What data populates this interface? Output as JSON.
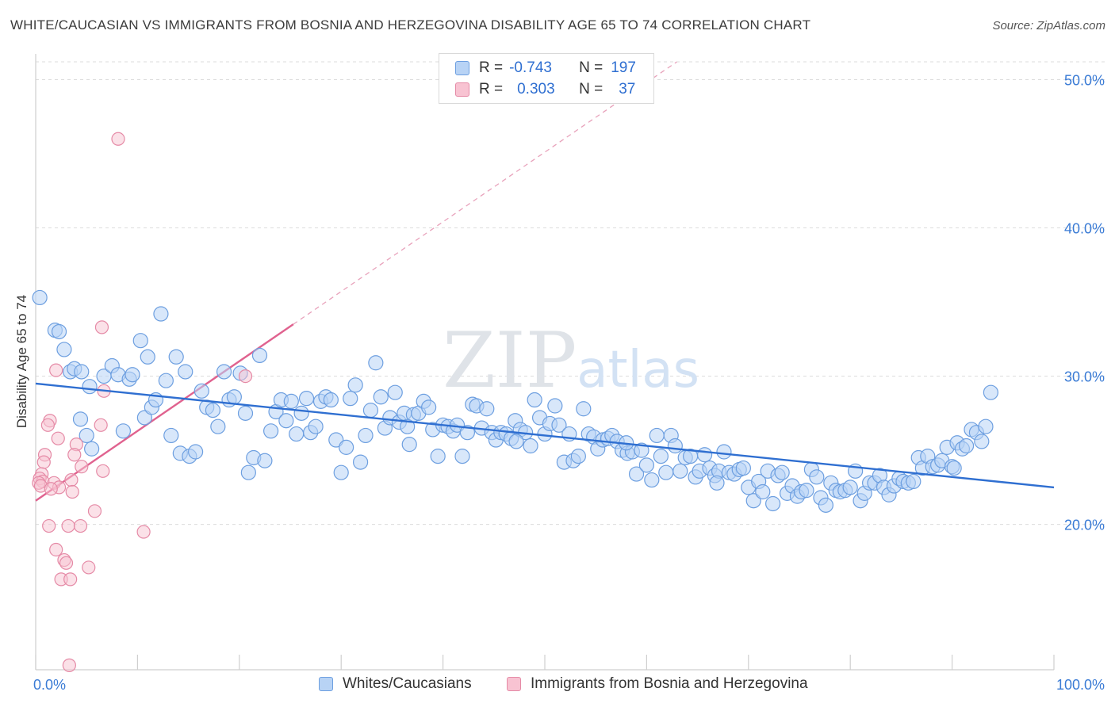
{
  "title": "WHITE/CAUCASIAN VS IMMIGRANTS FROM BOSNIA AND HERZEGOVINA DISABILITY AGE 65 TO 74 CORRELATION CHART",
  "source": "Source: ZipAtlas.com",
  "watermark": "ZIPatlas",
  "legend": {
    "rows": [
      {
        "r_label": "R =",
        "r_value": "-0.743",
        "n_label": "N =",
        "n_value": "197"
      },
      {
        "r_label": "R =",
        "r_value": "0.303",
        "n_label": "N =",
        "n_value": "37"
      }
    ],
    "series": [
      "Whites/Caucasians",
      "Immigrants from Bosnia and Herzegovina"
    ]
  },
  "colors": {
    "blue_fill": "#b8d3f5",
    "blue_stroke": "#6d9fe0",
    "blue_line": "#2f6fd1",
    "pink_fill": "#f8c3d2",
    "pink_stroke": "#e58aa6",
    "pink_line": "#e0628f",
    "tick_text": "#3a7bd5"
  },
  "chart_data": {
    "type": "scatter",
    "xlabel": "",
    "ylabel": "Disability Age 65 to 74",
    "xlim": [
      0,
      100
    ],
    "ylim": [
      10.2,
      51.2
    ],
    "x_tick_labels": [
      "0.0%",
      "100.0%"
    ],
    "y_ticks": [
      20,
      30,
      40,
      50
    ],
    "y_tick_labels": [
      "20.0%",
      "30.0%",
      "40.0%",
      "50.0%"
    ],
    "grid": true,
    "legend_position": "top-center",
    "series": [
      {
        "name": "Whites/Caucasians",
        "r": -0.743,
        "n": 197,
        "trend": {
          "x": [
            0,
            100
          ],
          "y": [
            29.5,
            22.5
          ]
        },
        "points": [
          [
            0.4,
            35.3
          ],
          [
            1.9,
            33.1
          ],
          [
            2.3,
            33.0
          ],
          [
            2.8,
            31.8
          ],
          [
            3.4,
            30.3
          ],
          [
            3.8,
            30.5
          ],
          [
            4.5,
            30.3
          ],
          [
            5.3,
            29.3
          ],
          [
            4.4,
            27.1
          ],
          [
            5.5,
            25.1
          ],
          [
            5.0,
            26.0
          ],
          [
            6.7,
            30.0
          ],
          [
            7.5,
            30.7
          ],
          [
            8.1,
            30.1
          ],
          [
            8.6,
            26.3
          ],
          [
            9.2,
            29.8
          ],
          [
            9.5,
            30.1
          ],
          [
            10.3,
            32.4
          ],
          [
            10.7,
            27.2
          ],
          [
            11.0,
            31.3
          ],
          [
            11.4,
            27.9
          ],
          [
            11.8,
            28.4
          ],
          [
            12.3,
            34.2
          ],
          [
            12.8,
            29.7
          ],
          [
            13.3,
            26.0
          ],
          [
            13.8,
            31.3
          ],
          [
            14.2,
            24.8
          ],
          [
            14.7,
            30.3
          ],
          [
            15.1,
            24.6
          ],
          [
            15.7,
            24.9
          ],
          [
            16.3,
            29.0
          ],
          [
            16.8,
            27.9
          ],
          [
            17.4,
            27.7
          ],
          [
            17.9,
            26.6
          ],
          [
            18.5,
            30.3
          ],
          [
            19.0,
            28.4
          ],
          [
            19.5,
            28.6
          ],
          [
            20.1,
            30.2
          ],
          [
            20.6,
            27.5
          ],
          [
            20.9,
            23.5
          ],
          [
            21.4,
            24.5
          ],
          [
            22.0,
            31.4
          ],
          [
            22.5,
            24.3
          ],
          [
            23.1,
            26.3
          ],
          [
            23.6,
            27.6
          ],
          [
            24.1,
            28.4
          ],
          [
            24.6,
            27.0
          ],
          [
            25.1,
            28.3
          ],
          [
            25.6,
            26.1
          ],
          [
            26.1,
            27.5
          ],
          [
            26.6,
            28.5
          ],
          [
            27.0,
            26.2
          ],
          [
            27.5,
            26.6
          ],
          [
            28.0,
            28.3
          ],
          [
            28.5,
            28.6
          ],
          [
            29.0,
            28.4
          ],
          [
            29.5,
            25.7
          ],
          [
            30.0,
            23.5
          ],
          [
            30.5,
            25.2
          ],
          [
            30.9,
            28.5
          ],
          [
            31.4,
            29.4
          ],
          [
            31.9,
            24.2
          ],
          [
            32.4,
            26.0
          ],
          [
            32.9,
            27.7
          ],
          [
            33.4,
            30.9
          ],
          [
            33.9,
            28.6
          ],
          [
            34.3,
            26.5
          ],
          [
            34.8,
            27.2
          ],
          [
            35.3,
            28.9
          ],
          [
            35.7,
            26.9
          ],
          [
            36.2,
            27.5
          ],
          [
            36.7,
            25.4
          ],
          [
            37.1,
            27.4
          ],
          [
            37.6,
            27.5
          ],
          [
            38.1,
            28.3
          ],
          [
            38.6,
            27.9
          ],
          [
            39.0,
            26.4
          ],
          [
            39.5,
            24.6
          ],
          [
            40.0,
            26.7
          ],
          [
            40.5,
            26.6
          ],
          [
            41.0,
            26.3
          ],
          [
            41.4,
            26.7
          ],
          [
            41.9,
            24.6
          ],
          [
            42.4,
            26.2
          ],
          [
            42.9,
            28.1
          ],
          [
            43.3,
            28.0
          ],
          [
            43.8,
            26.5
          ],
          [
            44.3,
            27.8
          ],
          [
            44.8,
            26.2
          ],
          [
            45.2,
            25.7
          ],
          [
            45.7,
            26.2
          ],
          [
            46.2,
            26.1
          ],
          [
            46.7,
            25.8
          ],
          [
            47.1,
            27.0
          ],
          [
            47.6,
            26.4
          ],
          [
            48.1,
            26.2
          ],
          [
            48.6,
            25.3
          ],
          [
            49.0,
            28.4
          ],
          [
            49.5,
            27.2
          ],
          [
            50.0,
            26.1
          ],
          [
            50.5,
            26.8
          ],
          [
            51.0,
            28.0
          ],
          [
            51.4,
            26.7
          ],
          [
            51.9,
            24.2
          ],
          [
            52.4,
            26.1
          ],
          [
            52.8,
            24.3
          ],
          [
            53.3,
            24.6
          ],
          [
            53.8,
            27.8
          ],
          [
            54.3,
            26.1
          ],
          [
            54.8,
            25.9
          ],
          [
            55.2,
            25.1
          ],
          [
            55.7,
            25.7
          ],
          [
            56.2,
            25.8
          ],
          [
            56.6,
            26.0
          ],
          [
            57.1,
            25.6
          ],
          [
            57.6,
            25.0
          ],
          [
            58.1,
            24.8
          ],
          [
            58.6,
            24.9
          ],
          [
            59.0,
            23.4
          ],
          [
            59.5,
            25.0
          ],
          [
            60.0,
            24.0
          ],
          [
            60.5,
            23.0
          ],
          [
            61.0,
            26.0
          ],
          [
            61.4,
            24.6
          ],
          [
            61.9,
            23.5
          ],
          [
            62.4,
            26.0
          ],
          [
            62.8,
            25.3
          ],
          [
            63.3,
            23.6
          ],
          [
            63.8,
            24.5
          ],
          [
            64.3,
            24.6
          ],
          [
            64.8,
            23.2
          ],
          [
            65.2,
            23.6
          ],
          [
            65.7,
            24.7
          ],
          [
            66.2,
            23.8
          ],
          [
            66.7,
            23.3
          ],
          [
            67.1,
            23.6
          ],
          [
            67.6,
            24.9
          ],
          [
            68.1,
            23.5
          ],
          [
            68.6,
            23.4
          ],
          [
            69.1,
            23.7
          ],
          [
            69.5,
            23.8
          ],
          [
            70.0,
            22.5
          ],
          [
            70.5,
            21.6
          ],
          [
            71.0,
            22.9
          ],
          [
            71.4,
            22.2
          ],
          [
            71.9,
            23.6
          ],
          [
            72.4,
            21.4
          ],
          [
            72.9,
            23.3
          ],
          [
            73.3,
            23.5
          ],
          [
            73.8,
            22.1
          ],
          [
            74.3,
            22.6
          ],
          [
            74.8,
            21.9
          ],
          [
            75.2,
            22.2
          ],
          [
            75.7,
            22.3
          ],
          [
            76.2,
            23.7
          ],
          [
            76.7,
            23.2
          ],
          [
            77.1,
            21.8
          ],
          [
            77.6,
            21.3
          ],
          [
            78.1,
            22.8
          ],
          [
            78.6,
            22.3
          ],
          [
            79.0,
            22.2
          ],
          [
            79.5,
            22.3
          ],
          [
            80.0,
            22.5
          ],
          [
            80.5,
            23.6
          ],
          [
            81.0,
            21.6
          ],
          [
            81.4,
            22.1
          ],
          [
            81.9,
            22.8
          ],
          [
            82.4,
            22.8
          ],
          [
            82.9,
            23.3
          ],
          [
            83.3,
            22.5
          ],
          [
            83.8,
            22.0
          ],
          [
            84.3,
            22.6
          ],
          [
            84.8,
            23.1
          ],
          [
            85.2,
            22.9
          ],
          [
            85.7,
            22.8
          ],
          [
            86.2,
            22.9
          ],
          [
            86.7,
            24.5
          ],
          [
            87.1,
            23.8
          ],
          [
            87.6,
            24.6
          ],
          [
            88.1,
            23.9
          ],
          [
            88.6,
            24.0
          ],
          [
            89.0,
            24.3
          ],
          [
            89.5,
            25.2
          ],
          [
            90.0,
            23.9
          ],
          [
            90.5,
            25.5
          ],
          [
            91.0,
            25.1
          ],
          [
            91.4,
            25.3
          ],
          [
            91.9,
            26.4
          ],
          [
            92.4,
            26.2
          ],
          [
            92.9,
            25.6
          ],
          [
            93.3,
            26.6
          ],
          [
            93.8,
            28.9
          ],
          [
            90.2,
            23.8
          ],
          [
            58.0,
            25.5
          ],
          [
            47.2,
            25.6
          ],
          [
            66.9,
            22.8
          ],
          [
            36.5,
            26.6
          ]
        ]
      },
      {
        "name": "Immigrants from Bosnia and Herzegovina",
        "r": 0.303,
        "n": 37,
        "trend": {
          "x": [
            0,
            25.3
          ],
          "y": [
            21.6,
            33.5
          ]
        },
        "trend_dashed_extension": {
          "x": [
            25.3,
            100
          ],
          "y": [
            33.5,
            68.6
          ]
        },
        "points": [
          [
            8.1,
            46.0
          ],
          [
            6.5,
            33.3
          ],
          [
            2.0,
            30.4
          ],
          [
            20.6,
            30.0
          ],
          [
            6.7,
            29.0
          ],
          [
            1.4,
            27.0
          ],
          [
            1.2,
            26.7
          ],
          [
            6.4,
            26.7
          ],
          [
            2.2,
            25.8
          ],
          [
            4.0,
            25.4
          ],
          [
            0.9,
            24.7
          ],
          [
            3.8,
            24.7
          ],
          [
            0.8,
            24.2
          ],
          [
            4.5,
            23.9
          ],
          [
            6.6,
            23.6
          ],
          [
            0.6,
            23.4
          ],
          [
            0.4,
            23.1
          ],
          [
            0.7,
            22.9
          ],
          [
            0.3,
            22.8
          ],
          [
            0.5,
            22.6
          ],
          [
            1.8,
            22.8
          ],
          [
            3.5,
            23.0
          ],
          [
            2.3,
            22.5
          ],
          [
            1.5,
            22.4
          ],
          [
            3.6,
            22.2
          ],
          [
            5.8,
            20.9
          ],
          [
            1.3,
            19.9
          ],
          [
            3.2,
            19.9
          ],
          [
            4.4,
            19.9
          ],
          [
            10.6,
            19.5
          ],
          [
            2.0,
            18.3
          ],
          [
            2.8,
            17.6
          ],
          [
            3.0,
            17.4
          ],
          [
            5.2,
            17.1
          ],
          [
            2.5,
            16.3
          ],
          [
            3.4,
            16.3
          ],
          [
            3.3,
            10.5
          ]
        ]
      }
    ]
  }
}
